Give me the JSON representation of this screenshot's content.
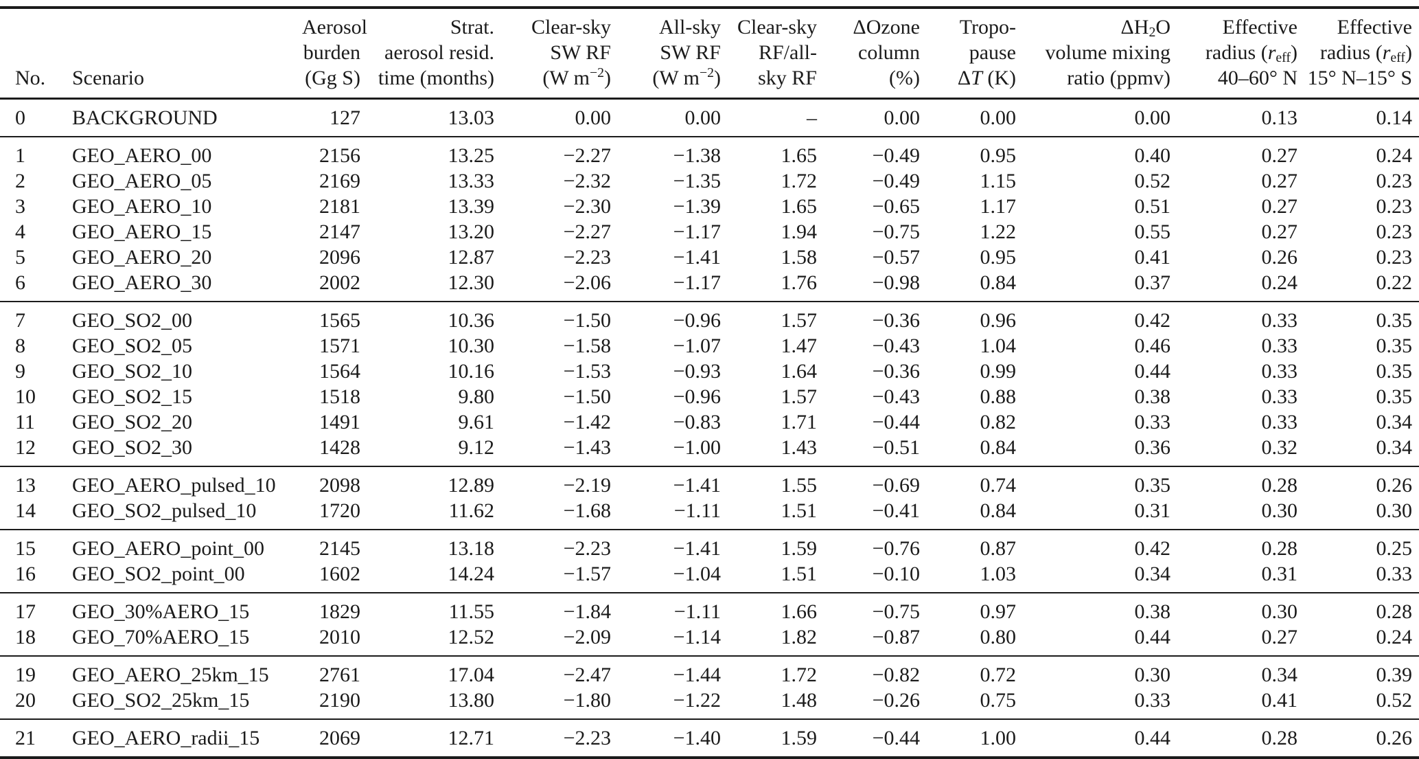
{
  "table": {
    "columns": [
      {
        "id": "no",
        "align": "left",
        "header_lines": [
          [
            {
              "t": "No."
            }
          ]
        ]
      },
      {
        "id": "scenario",
        "align": "left",
        "header_lines": [
          [
            {
              "t": "Scenario"
            }
          ]
        ]
      },
      {
        "id": "burden",
        "align": "right",
        "header_lines": [
          [
            {
              "t": "Aerosol"
            }
          ],
          [
            {
              "t": "burden"
            }
          ],
          [
            {
              "t": "(Gg S)"
            }
          ]
        ]
      },
      {
        "id": "resid",
        "align": "right",
        "header_lines": [
          [
            {
              "t": "Strat."
            }
          ],
          [
            {
              "t": "aerosol resid."
            }
          ],
          [
            {
              "t": "time (months)"
            }
          ]
        ]
      },
      {
        "id": "csrf",
        "align": "right",
        "header_lines": [
          [
            {
              "t": "Clear-sky"
            }
          ],
          [
            {
              "t": "SW RF"
            }
          ],
          [
            {
              "t": "(W m"
            },
            {
              "sup": "−2"
            },
            {
              "t": ")"
            }
          ]
        ]
      },
      {
        "id": "asrf",
        "align": "right",
        "header_lines": [
          [
            {
              "t": "All-sky"
            }
          ],
          [
            {
              "t": "SW RF"
            }
          ],
          [
            {
              "t": "(W m"
            },
            {
              "sup": "−2"
            },
            {
              "t": ")"
            }
          ]
        ]
      },
      {
        "id": "ratio",
        "align": "right",
        "header_lines": [
          [
            {
              "t": "Clear-sky"
            }
          ],
          [
            {
              "t": "RF/all-"
            }
          ],
          [
            {
              "t": "sky RF"
            }
          ]
        ]
      },
      {
        "id": "ozone",
        "align": "right",
        "header_lines": [
          [
            {
              "t": "ΔOzone"
            }
          ],
          [
            {
              "t": "column"
            }
          ],
          [
            {
              "t": "(%)"
            }
          ]
        ]
      },
      {
        "id": "trop",
        "align": "right",
        "header_lines": [
          [
            {
              "t": "Tropo-"
            }
          ],
          [
            {
              "t": "pause"
            }
          ],
          [
            {
              "t": "Δ"
            },
            {
              "i": "T"
            },
            {
              "t": " (K)"
            }
          ]
        ]
      },
      {
        "id": "h2o",
        "align": "right",
        "header_lines": [
          [
            {
              "t": "ΔH"
            },
            {
              "sub": "2"
            },
            {
              "t": "O"
            }
          ],
          [
            {
              "t": "volume mixing"
            }
          ],
          [
            {
              "t": "ratio (ppmv)"
            }
          ]
        ]
      },
      {
        "id": "reffn",
        "align": "right",
        "header_lines": [
          [
            {
              "t": "Effective"
            }
          ],
          [
            {
              "t": "radius ("
            },
            {
              "i": "r"
            },
            {
              "sub": "eff"
            },
            {
              "t": ")"
            }
          ],
          [
            {
              "t": "40–60° N"
            }
          ]
        ]
      },
      {
        "id": "reffs",
        "align": "right",
        "header_lines": [
          [
            {
              "t": "Effective"
            }
          ],
          [
            {
              "t": "radius ("
            },
            {
              "i": "r"
            },
            {
              "sub": "eff"
            },
            {
              "t": ")"
            }
          ],
          [
            {
              "t": "15° N–15° S"
            }
          ]
        ]
      }
    ],
    "groups": [
      {
        "rows": [
          [
            "0",
            "BACKGROUND",
            "127",
            "13.03",
            "0.00",
            "0.00",
            "–",
            "0.00",
            "0.00",
            "0.00",
            "0.13",
            "0.14"
          ]
        ]
      },
      {
        "rows": [
          [
            "1",
            "GEO_AERO_00",
            "2156",
            "13.25",
            "−2.27",
            "−1.38",
            "1.65",
            "−0.49",
            "0.95",
            "0.40",
            "0.27",
            "0.24"
          ],
          [
            "2",
            "GEO_AERO_05",
            "2169",
            "13.33",
            "−2.32",
            "−1.35",
            "1.72",
            "−0.49",
            "1.15",
            "0.52",
            "0.27",
            "0.23"
          ],
          [
            "3",
            "GEO_AERO_10",
            "2181",
            "13.39",
            "−2.30",
            "−1.39",
            "1.65",
            "−0.65",
            "1.17",
            "0.51",
            "0.27",
            "0.23"
          ],
          [
            "4",
            "GEO_AERO_15",
            "2147",
            "13.20",
            "−2.27",
            "−1.17",
            "1.94",
            "−0.75",
            "1.22",
            "0.55",
            "0.27",
            "0.23"
          ],
          [
            "5",
            "GEO_AERO_20",
            "2096",
            "12.87",
            "−2.23",
            "−1.41",
            "1.58",
            "−0.57",
            "0.95",
            "0.41",
            "0.26",
            "0.23"
          ],
          [
            "6",
            "GEO_AERO_30",
            "2002",
            "12.30",
            "−2.06",
            "−1.17",
            "1.76",
            "−0.98",
            "0.84",
            "0.37",
            "0.24",
            "0.22"
          ]
        ]
      },
      {
        "rows": [
          [
            "7",
            "GEO_SO2_00",
            "1565",
            "10.36",
            "−1.50",
            "−0.96",
            "1.57",
            "−0.36",
            "0.96",
            "0.42",
            "0.33",
            "0.35"
          ],
          [
            "8",
            "GEO_SO2_05",
            "1571",
            "10.30",
            "−1.58",
            "−1.07",
            "1.47",
            "−0.43",
            "1.04",
            "0.46",
            "0.33",
            "0.35"
          ],
          [
            "9",
            "GEO_SO2_10",
            "1564",
            "10.16",
            "−1.53",
            "−0.93",
            "1.64",
            "−0.36",
            "0.99",
            "0.44",
            "0.33",
            "0.35"
          ],
          [
            "10",
            "GEO_SO2_15",
            "1518",
            "9.80",
            "−1.50",
            "−0.96",
            "1.57",
            "−0.43",
            "0.88",
            "0.38",
            "0.33",
            "0.35"
          ],
          [
            "11",
            "GEO_SO2_20",
            "1491",
            "9.61",
            "−1.42",
            "−0.83",
            "1.71",
            "−0.44",
            "0.82",
            "0.33",
            "0.33",
            "0.34"
          ],
          [
            "12",
            "GEO_SO2_30",
            "1428",
            "9.12",
            "−1.43",
            "−1.00",
            "1.43",
            "−0.51",
            "0.84",
            "0.36",
            "0.32",
            "0.34"
          ]
        ]
      },
      {
        "rows": [
          [
            "13",
            "GEO_AERO_pulsed_10",
            "2098",
            "12.89",
            "−2.19",
            "−1.41",
            "1.55",
            "−0.69",
            "0.74",
            "0.35",
            "0.28",
            "0.26"
          ],
          [
            "14",
            "GEO_SO2_pulsed_10",
            "1720",
            "11.62",
            "−1.68",
            "−1.11",
            "1.51",
            "−0.41",
            "0.84",
            "0.31",
            "0.30",
            "0.30"
          ]
        ]
      },
      {
        "rows": [
          [
            "15",
            "GEO_AERO_point_00",
            "2145",
            "13.18",
            "−2.23",
            "−1.41",
            "1.59",
            "−0.76",
            "0.87",
            "0.42",
            "0.28",
            "0.25"
          ],
          [
            "16",
            "GEO_SO2_point_00",
            "1602",
            "14.24",
            "−1.57",
            "−1.04",
            "1.51",
            "−0.10",
            "1.03",
            "0.34",
            "0.31",
            "0.33"
          ]
        ]
      },
      {
        "rows": [
          [
            "17",
            "GEO_30%AERO_15",
            "1829",
            "11.55",
            "−1.84",
            "−1.11",
            "1.66",
            "−0.75",
            "0.97",
            "0.38",
            "0.30",
            "0.28"
          ],
          [
            "18",
            "GEO_70%AERO_15",
            "2010",
            "12.52",
            "−2.09",
            "−1.14",
            "1.82",
            "−0.87",
            "0.80",
            "0.44",
            "0.27",
            "0.24"
          ]
        ]
      },
      {
        "rows": [
          [
            "19",
            "GEO_AERO_25km_15",
            "2761",
            "17.04",
            "−2.47",
            "−1.44",
            "1.72",
            "−0.82",
            "0.72",
            "0.30",
            "0.34",
            "0.39"
          ],
          [
            "20",
            "GEO_SO2_25km_15",
            "2190",
            "13.80",
            "−1.80",
            "−1.22",
            "1.48",
            "−0.26",
            "0.75",
            "0.33",
            "0.41",
            "0.52"
          ]
        ]
      },
      {
        "rows": [
          [
            "21",
            "GEO_AERO_radii_15",
            "2069",
            "12.71",
            "−2.23",
            "−1.40",
            "1.59",
            "−0.44",
            "1.00",
            "0.44",
            "0.28",
            "0.26"
          ]
        ]
      }
    ]
  }
}
